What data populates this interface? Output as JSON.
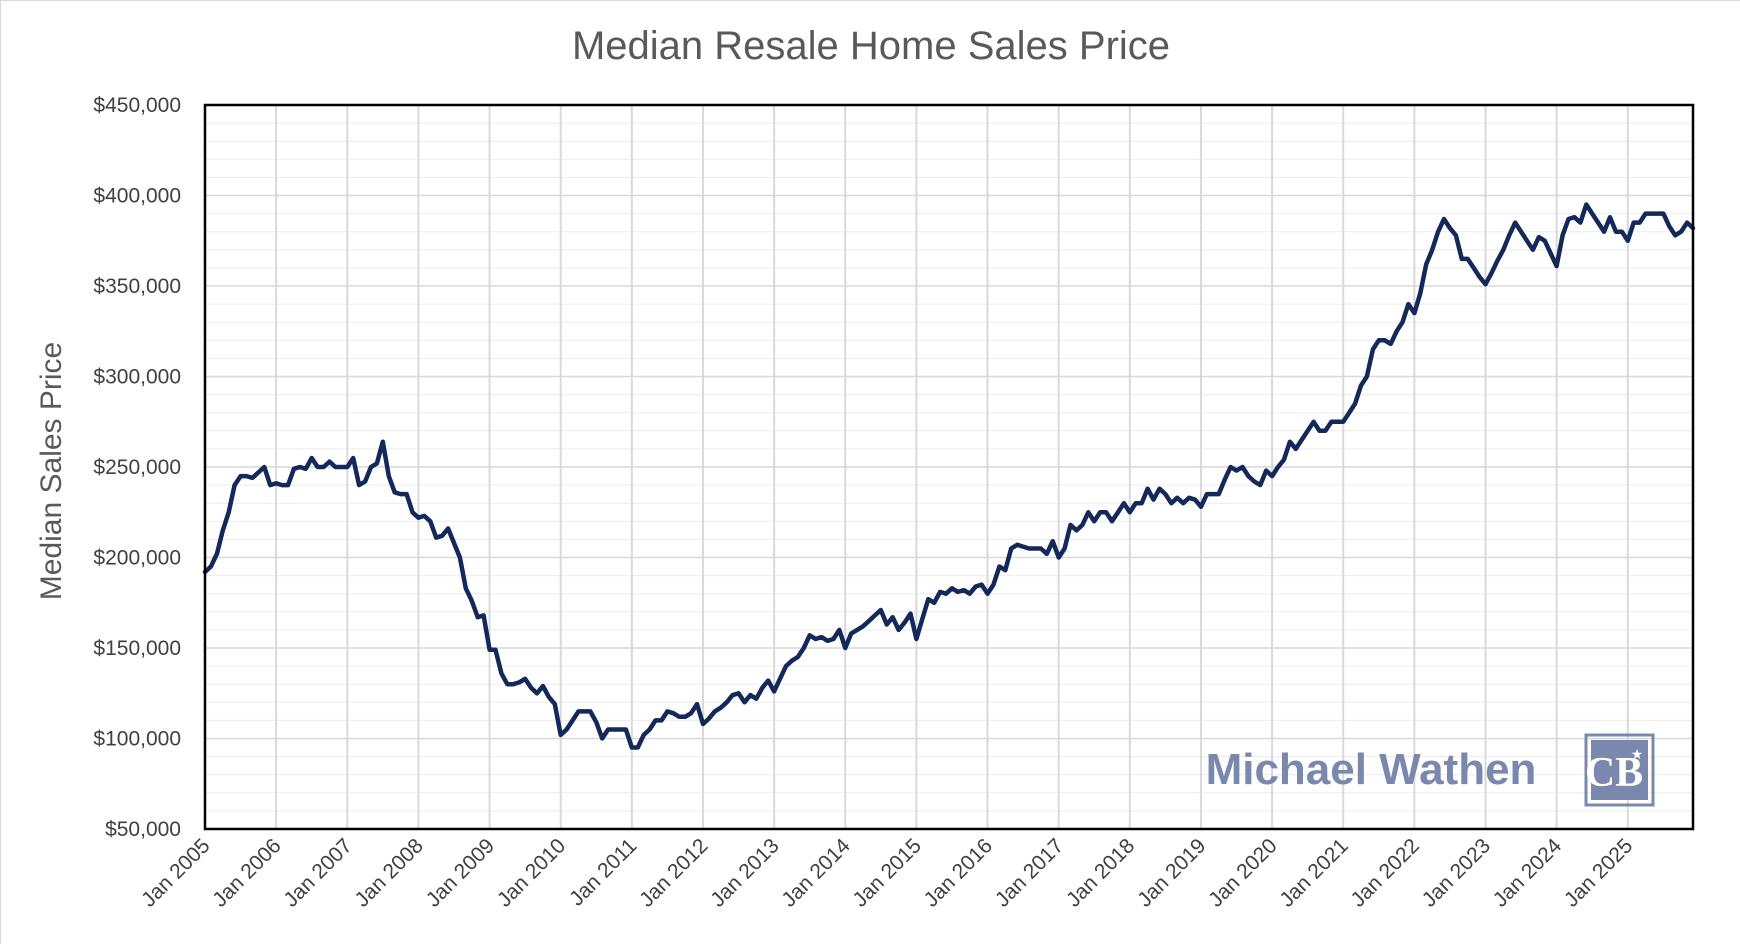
{
  "chart_data": {
    "type": "line",
    "title": "Median Resale Home Sales Price",
    "ylabel": "Median Sales Price",
    "xlabel": "",
    "ylim": [
      50000,
      450000
    ],
    "y_ticks": [
      50000,
      100000,
      150000,
      200000,
      250000,
      300000,
      350000,
      400000,
      450000
    ],
    "y_tick_labels": [
      "$50,000",
      "$100,000",
      "$150,000",
      "$200,000",
      "$250,000",
      "$300,000",
      "$350,000",
      "$400,000",
      "$450,000"
    ],
    "x_range": [
      "2005-01",
      "2025-12"
    ],
    "x_tick_labels": [
      "Jan 2005",
      "Jan 2006",
      "Jan 2007",
      "Jan 2008",
      "Jan 2009",
      "Jan 2010",
      "Jan 2011",
      "Jan 2012",
      "Jan 2013",
      "Jan 2014",
      "Jan 2015",
      "Jan 2016",
      "Jan 2017",
      "Jan 2018",
      "Jan 2019",
      "Jan 2020",
      "Jan 2021",
      "Jan 2022",
      "Jan 2023",
      "Jan 2024",
      "Jan 2025"
    ],
    "x_tick_dates": [
      "2005-01",
      "2006-01",
      "2007-01",
      "2008-01",
      "2009-01",
      "2010-01",
      "2011-01",
      "2012-01",
      "2013-01",
      "2014-01",
      "2015-01",
      "2016-01",
      "2017-01",
      "2018-01",
      "2019-01",
      "2020-01",
      "2021-01",
      "2022-01",
      "2023-01",
      "2024-01",
      "2025-01"
    ],
    "grid": true,
    "legend": "none",
    "series": [
      {
        "color": "#14285a",
        "x": [
          "2005-01",
          "2005-02",
          "2005-03",
          "2005-04",
          "2005-05",
          "2005-06",
          "2005-07",
          "2005-08",
          "2005-09",
          "2005-10",
          "2005-11",
          "2005-12",
          "2006-01",
          "2006-02",
          "2006-03",
          "2006-04",
          "2006-05",
          "2006-06",
          "2006-07",
          "2006-08",
          "2006-09",
          "2006-10",
          "2006-11",
          "2006-12",
          "2007-01",
          "2007-02",
          "2007-03",
          "2007-04",
          "2007-05",
          "2007-06",
          "2007-07",
          "2007-08",
          "2007-09",
          "2007-10",
          "2007-11",
          "2007-12",
          "2008-01",
          "2008-02",
          "2008-03",
          "2008-04",
          "2008-05",
          "2008-06",
          "2008-07",
          "2008-08",
          "2008-09",
          "2008-10",
          "2008-11",
          "2008-12",
          "2009-01",
          "2009-02",
          "2009-03",
          "2009-04",
          "2009-05",
          "2009-06",
          "2009-07",
          "2009-08",
          "2009-09",
          "2009-10",
          "2009-11",
          "2009-12",
          "2010-01",
          "2010-02",
          "2010-03",
          "2010-04",
          "2010-05",
          "2010-06",
          "2010-07",
          "2010-08",
          "2010-09",
          "2010-10",
          "2010-11",
          "2010-12",
          "2011-01",
          "2011-02",
          "2011-03",
          "2011-04",
          "2011-05",
          "2011-06",
          "2011-07",
          "2011-08",
          "2011-09",
          "2011-10",
          "2011-11",
          "2011-12",
          "2012-01",
          "2012-02",
          "2012-03",
          "2012-04",
          "2012-05",
          "2012-06",
          "2012-07",
          "2012-08",
          "2012-09",
          "2012-10",
          "2012-11",
          "2012-12",
          "2013-01",
          "2013-02",
          "2013-03",
          "2013-04",
          "2013-05",
          "2013-06",
          "2013-07",
          "2013-08",
          "2013-09",
          "2013-10",
          "2013-11",
          "2013-12",
          "2014-01",
          "2014-02",
          "2014-03",
          "2014-04",
          "2014-05",
          "2014-06",
          "2014-07",
          "2014-08",
          "2014-09",
          "2014-10",
          "2014-11",
          "2014-12",
          "2015-01",
          "2015-02",
          "2015-03",
          "2015-04",
          "2015-05",
          "2015-06",
          "2015-07",
          "2015-08",
          "2015-09",
          "2015-10",
          "2015-11",
          "2015-12",
          "2016-01",
          "2016-02",
          "2016-03",
          "2016-04",
          "2016-05",
          "2016-06",
          "2016-07",
          "2016-08",
          "2016-09",
          "2016-10",
          "2016-11",
          "2016-12",
          "2017-01",
          "2017-02",
          "2017-03",
          "2017-04",
          "2017-05",
          "2017-06",
          "2017-07",
          "2017-08",
          "2017-09",
          "2017-10",
          "2017-11",
          "2017-12",
          "2018-01",
          "2018-02",
          "2018-03",
          "2018-04",
          "2018-05",
          "2018-06",
          "2018-07",
          "2018-08",
          "2018-09",
          "2018-10",
          "2018-11",
          "2018-12",
          "2019-01",
          "2019-02",
          "2019-03",
          "2019-04",
          "2019-05",
          "2019-06",
          "2019-07",
          "2019-08",
          "2019-09",
          "2019-10",
          "2019-11",
          "2019-12",
          "2020-01",
          "2020-02",
          "2020-03",
          "2020-04",
          "2020-05",
          "2020-06",
          "2020-07",
          "2020-08",
          "2020-09",
          "2020-10",
          "2020-11",
          "2020-12",
          "2021-01",
          "2021-02",
          "2021-03",
          "2021-04",
          "2021-05",
          "2021-06",
          "2021-07",
          "2021-08",
          "2021-09",
          "2021-10",
          "2021-11",
          "2021-12",
          "2022-01",
          "2022-02",
          "2022-03",
          "2022-04",
          "2022-05",
          "2022-06",
          "2022-07",
          "2022-08",
          "2022-09",
          "2022-10",
          "2022-11",
          "2022-12",
          "2023-01",
          "2023-02",
          "2023-03",
          "2023-04",
          "2023-05",
          "2023-06",
          "2023-07",
          "2023-08",
          "2023-09",
          "2023-10",
          "2023-11",
          "2023-12",
          "2024-01",
          "2024-02",
          "2024-03",
          "2024-04",
          "2024-05",
          "2024-06",
          "2024-07",
          "2024-08",
          "2024-09",
          "2024-10",
          "2024-11",
          "2024-12",
          "2025-01",
          "2025-02",
          "2025-03",
          "2025-04",
          "2025-05",
          "2025-06",
          "2025-07",
          "2025-08",
          "2025-09",
          "2025-10",
          "2025-11",
          "2025-12"
        ],
        "values": [
          192000,
          195000,
          202000,
          215000,
          225000,
          240000,
          245000,
          245000,
          244000,
          247000,
          250000,
          240000,
          241000,
          240000,
          240000,
          249000,
          250000,
          249000,
          255000,
          250000,
          250000,
          253000,
          250000,
          250000,
          250000,
          255000,
          240000,
          242000,
          250000,
          252000,
          264000,
          245000,
          236000,
          235000,
          235000,
          225000,
          222000,
          223000,
          220000,
          211000,
          212000,
          216000,
          208000,
          200000,
          183000,
          176000,
          167000,
          168000,
          149000,
          149000,
          136000,
          130000,
          130000,
          131000,
          133000,
          128000,
          125000,
          129000,
          123000,
          119000,
          102000,
          105000,
          110000,
          115000,
          115000,
          115000,
          109000,
          100000,
          105000,
          105000,
          105000,
          105000,
          95000,
          95000,
          102000,
          105000,
          110000,
          110000,
          115000,
          114000,
          112000,
          112000,
          114000,
          119000,
          108000,
          111000,
          115000,
          117000,
          120000,
          124000,
          125000,
          120000,
          124000,
          122000,
          128000,
          132000,
          126000,
          133000,
          140000,
          143000,
          145000,
          150000,
          157000,
          155000,
          156000,
          154000,
          155000,
          160000,
          150000,
          158000,
          160000,
          162000,
          165000,
          168000,
          171000,
          163000,
          167000,
          160000,
          164000,
          169000,
          155000,
          166000,
          177000,
          175000,
          181000,
          180000,
          183000,
          181000,
          182000,
          180000,
          184000,
          185000,
          180000,
          185000,
          195000,
          193000,
          205000,
          207000,
          206000,
          205000,
          205000,
          205000,
          202000,
          209000,
          200000,
          205000,
          218000,
          215000,
          218000,
          225000,
          220000,
          225000,
          225000,
          220000,
          225000,
          230000,
          225000,
          230000,
          230000,
          238000,
          232000,
          238000,
          235000,
          230000,
          233000,
          230000,
          233000,
          232000,
          228000,
          235000,
          235000,
          235000,
          243000,
          250000,
          248000,
          250000,
          245000,
          242000,
          240000,
          248000,
          245000,
          250000,
          254000,
          264000,
          260000,
          265000,
          270000,
          275000,
          270000,
          270000,
          275000,
          275000,
          275000,
          280000,
          285000,
          295000,
          300000,
          315000,
          320000,
          320000,
          318000,
          325000,
          330000,
          340000,
          335000,
          346000,
          362000,
          370000,
          380000,
          387000,
          382000,
          378000,
          365000,
          365000,
          360000,
          355000,
          351000,
          357000,
          364000,
          370000,
          378000,
          385000,
          380000,
          375000,
          370000,
          377000,
          375000,
          368000,
          361000,
          378000,
          387000,
          388000,
          385000,
          395000,
          390000,
          385000,
          380000,
          388000,
          380000,
          380000,
          375000,
          385000,
          385000,
          390000,
          390000,
          390000,
          390000,
          383000,
          378000,
          380000,
          385000,
          382000
        ]
      }
    ]
  },
  "watermark": {
    "text": "Michael Wathen",
    "text_color": "#7a88ad",
    "logo_text": "CB",
    "logo_star": "★",
    "logo_color": "#7a88ad"
  }
}
